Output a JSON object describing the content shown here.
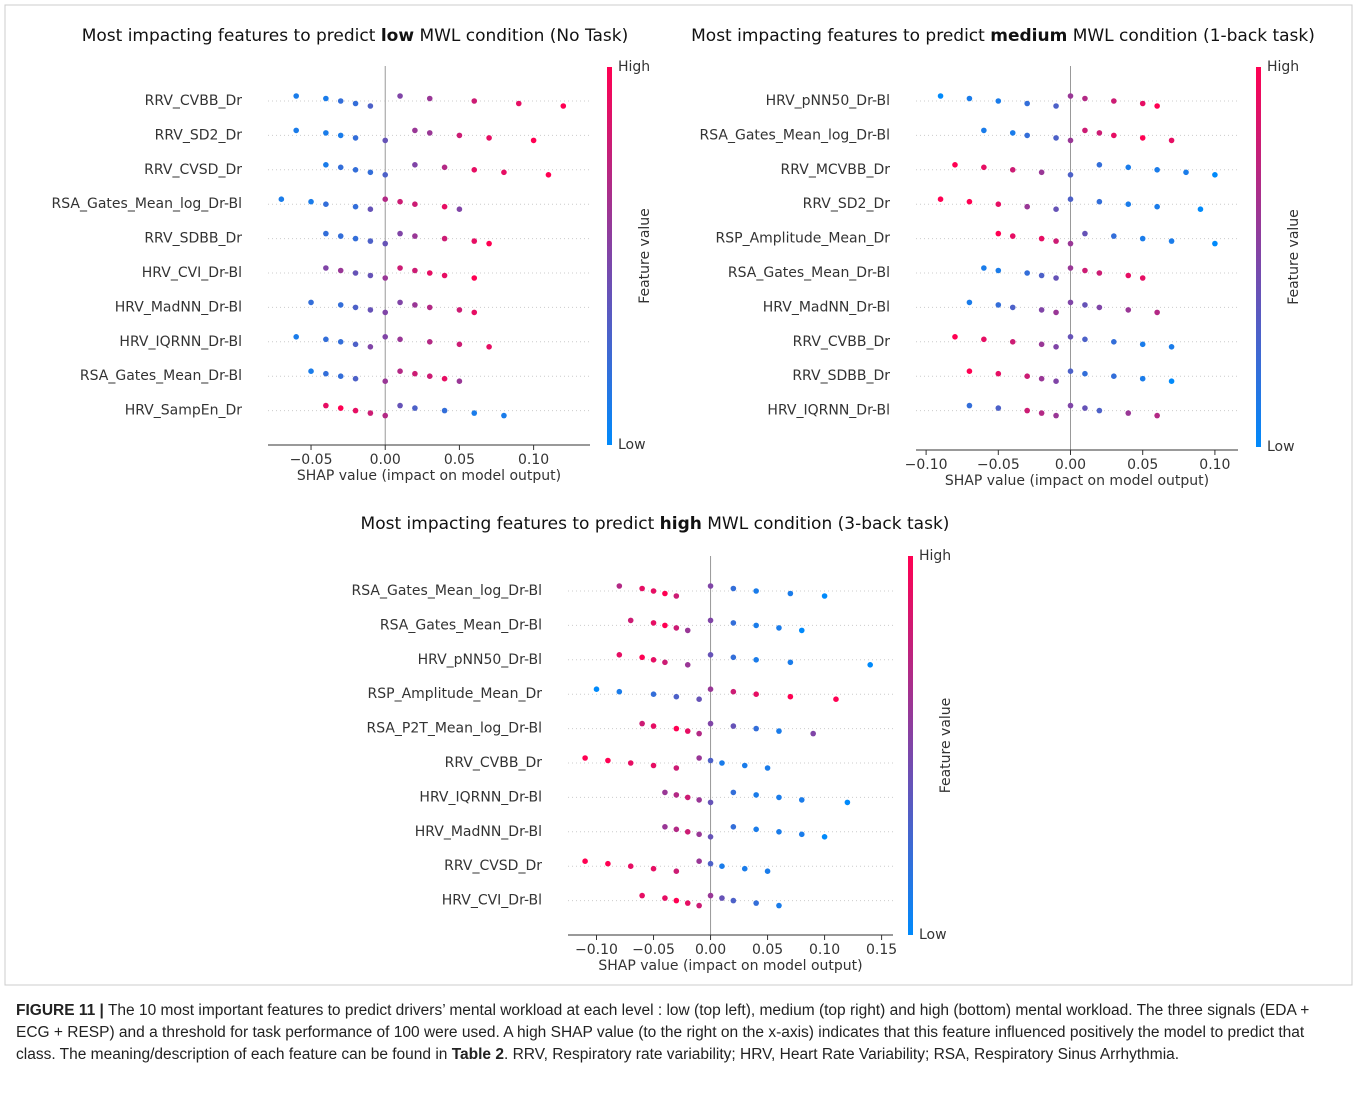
{
  "chart_data": [
    {
      "type": "beeswarm",
      "title": [
        "Most impacting features to predict",
        "low",
        "MWL condition (No Task)"
      ],
      "xlabel": "SHAP value (impact on model output)",
      "colorbar": {
        "high": "High",
        "low": "Low",
        "label": "Feature value"
      },
      "colormap": [
        "#008afb",
        "#ff0052"
      ],
      "xlim": [
        -0.079,
        0.138
      ],
      "xticks": [
        {
          "value": -0.05,
          "label": "−0.05"
        },
        {
          "value": 0,
          "label": "0.00"
        },
        {
          "value": 0.05,
          "label": "0.05"
        },
        {
          "value": 0.1,
          "label": "0.10"
        }
      ],
      "features": [
        {
          "name": "RRV_CVBB_Dr",
          "values": [
            -0.06,
            -0.04,
            -0.03,
            -0.02,
            -0.01,
            0.01,
            0.03,
            0.06,
            0.09,
            0.12
          ],
          "feature_values": [
            0.1,
            0.1,
            0.2,
            0.2,
            0.3,
            0.5,
            0.6,
            0.8,
            0.9,
            1
          ]
        },
        {
          "name": "RRV_SD2_Dr",
          "values": [
            -0.06,
            -0.04,
            -0.03,
            -0.02,
            0.0,
            0.02,
            0.03,
            0.05,
            0.07,
            0.1
          ],
          "feature_values": [
            0.1,
            0.1,
            0.1,
            0.2,
            0.4,
            0.6,
            0.6,
            0.8,
            0.9,
            1
          ]
        },
        {
          "name": "RRV_CVSD_Dr",
          "values": [
            -0.04,
            -0.03,
            -0.02,
            -0.01,
            0.0,
            0.02,
            0.04,
            0.06,
            0.08,
            0.11
          ],
          "feature_values": [
            0.1,
            0.2,
            0.2,
            0.2,
            0.3,
            0.5,
            0.7,
            0.9,
            0.9,
            1
          ]
        },
        {
          "name": "RSA_Gates_Mean_log_Dr-Bl",
          "values": [
            -0.07,
            -0.05,
            -0.04,
            -0.02,
            -0.01,
            0.0,
            0.01,
            0.02,
            0.04,
            0.05
          ],
          "feature_values": [
            0.1,
            0.1,
            0.2,
            0.2,
            0.4,
            0.7,
            0.8,
            0.8,
            0.9,
            0.5
          ]
        },
        {
          "name": "RRV_SDBB_Dr",
          "values": [
            -0.04,
            -0.03,
            -0.02,
            -0.01,
            0.0,
            0.01,
            0.02,
            0.04,
            0.06,
            0.07
          ],
          "feature_values": [
            0.2,
            0.2,
            0.2,
            0.3,
            0.4,
            0.5,
            0.6,
            0.8,
            0.9,
            1
          ]
        },
        {
          "name": "HRV_CVI_Dr-Bl",
          "values": [
            -0.04,
            -0.03,
            -0.02,
            -0.01,
            0.0,
            0.01,
            0.02,
            0.03,
            0.04,
            0.06
          ],
          "feature_values": [
            0.5,
            0.6,
            0.4,
            0.4,
            0.6,
            0.8,
            0.8,
            0.9,
            0.9,
            1
          ]
        },
        {
          "name": "HRV_MadNN_Dr-Bl",
          "values": [
            -0.05,
            -0.03,
            -0.02,
            -0.01,
            0.0,
            0.01,
            0.02,
            0.03,
            0.05,
            0.06
          ],
          "feature_values": [
            0.2,
            0.2,
            0.3,
            0.4,
            0.5,
            0.5,
            0.6,
            0.7,
            0.8,
            0.9
          ]
        },
        {
          "name": "HRV_IQRNN_Dr-Bl",
          "values": [
            -0.06,
            -0.04,
            -0.03,
            -0.02,
            -0.01,
            0.0,
            0.01,
            0.03,
            0.05,
            0.07
          ],
          "feature_values": [
            0.1,
            0.2,
            0.2,
            0.3,
            0.5,
            0.5,
            0.6,
            0.7,
            0.8,
            0.9
          ]
        },
        {
          "name": "RSA_Gates_Mean_Dr-Bl",
          "values": [
            -0.05,
            -0.04,
            -0.03,
            -0.02,
            0.0,
            0.01,
            0.02,
            0.03,
            0.04,
            0.05
          ],
          "feature_values": [
            0.1,
            0.2,
            0.2,
            0.3,
            0.6,
            0.7,
            0.8,
            0.8,
            0.9,
            0.6
          ]
        },
        {
          "name": "HRV_SampEn_Dr",
          "values": [
            -0.04,
            -0.03,
            -0.02,
            -0.01,
            0.0,
            0.01,
            0.02,
            0.04,
            0.06,
            0.08
          ],
          "feature_values": [
            0.9,
            1,
            0.9,
            0.8,
            0.7,
            0.4,
            0.3,
            0.2,
            0.1,
            0.1
          ]
        }
      ]
    },
    {
      "type": "beeswarm",
      "title": [
        "Most impacting features to predict",
        "medium",
        "MWL condition (1-back task)"
      ],
      "xlabel": "SHAP value (impact on model output)",
      "colorbar": {
        "high": "High",
        "low": "Low",
        "label": "Feature value"
      },
      "colormap": [
        "#008afb",
        "#ff0052"
      ],
      "xlim": [
        -0.107,
        0.116
      ],
      "xticks": [
        {
          "value": -0.1,
          "label": "−0.10"
        },
        {
          "value": -0.05,
          "label": "−0.05"
        },
        {
          "value": 0,
          "label": "0.00"
        },
        {
          "value": 0.05,
          "label": "0.05"
        },
        {
          "value": 0.1,
          "label": "0.10"
        }
      ],
      "features": [
        {
          "name": "HRV_pNN50_Dr-Bl",
          "values": [
            -0.09,
            -0.07,
            -0.05,
            -0.03,
            -0.01,
            0.0,
            0.01,
            0.03,
            0.05,
            0.06
          ],
          "feature_values": [
            0,
            0.1,
            0.1,
            0.2,
            0.3,
            0.6,
            0.7,
            0.8,
            0.9,
            1
          ]
        },
        {
          "name": "RSA_Gates_Mean_log_Dr-Bl",
          "values": [
            -0.06,
            -0.04,
            -0.03,
            -0.01,
            0.0,
            0.01,
            0.02,
            0.03,
            0.05,
            0.07
          ],
          "feature_values": [
            0.1,
            0.1,
            0.2,
            0.3,
            0.6,
            0.8,
            0.8,
            0.9,
            1,
            0.9
          ]
        },
        {
          "name": "RRV_MCVBB_Dr",
          "values": [
            -0.08,
            -0.06,
            -0.04,
            -0.02,
            0.0,
            0.02,
            0.04,
            0.06,
            0.08,
            0.1
          ],
          "feature_values": [
            1,
            0.9,
            0.8,
            0.6,
            0.3,
            0.2,
            0.1,
            0.1,
            0.1,
            0
          ]
        },
        {
          "name": "RRV_SD2_Dr",
          "values": [
            -0.09,
            -0.07,
            -0.05,
            -0.03,
            -0.01,
            0.0,
            0.02,
            0.04,
            0.06,
            0.09
          ],
          "feature_values": [
            1,
            1,
            0.9,
            0.6,
            0.4,
            0.3,
            0.2,
            0.1,
            0.1,
            0
          ]
        },
        {
          "name": "RSP_Amplitude_Mean_Dr",
          "values": [
            -0.05,
            -0.04,
            -0.02,
            -0.01,
            0.0,
            0.01,
            0.03,
            0.05,
            0.07,
            0.1
          ],
          "feature_values": [
            1,
            0.9,
            0.9,
            0.8,
            0.6,
            0.4,
            0.2,
            0.1,
            0.1,
            0
          ]
        },
        {
          "name": "RSA_Gates_Mean_Dr-Bl",
          "values": [
            -0.06,
            -0.05,
            -0.03,
            -0.02,
            -0.01,
            0.0,
            0.01,
            0.02,
            0.04,
            0.05
          ],
          "feature_values": [
            0.1,
            0.1,
            0.2,
            0.3,
            0.4,
            0.6,
            0.8,
            0.8,
            0.9,
            0.9
          ]
        },
        {
          "name": "HRV_MadNN_Dr-Bl",
          "values": [
            -0.07,
            -0.05,
            -0.04,
            -0.02,
            -0.01,
            0.0,
            0.01,
            0.02,
            0.04,
            0.06
          ],
          "feature_values": [
            0.1,
            0.2,
            0.3,
            0.5,
            0.6,
            0.5,
            0.4,
            0.5,
            0.6,
            0.7
          ]
        },
        {
          "name": "RRV_CVBB_Dr",
          "values": [
            -0.08,
            -0.06,
            -0.04,
            -0.02,
            -0.01,
            0.0,
            0.01,
            0.03,
            0.05,
            0.07
          ],
          "feature_values": [
            1,
            0.9,
            0.8,
            0.6,
            0.5,
            0.4,
            0.3,
            0.2,
            0.1,
            0.1
          ]
        },
        {
          "name": "RRV_SDBB_Dr",
          "values": [
            -0.07,
            -0.05,
            -0.03,
            -0.02,
            -0.01,
            0.0,
            0.01,
            0.03,
            0.05,
            0.07
          ],
          "feature_values": [
            1,
            0.9,
            0.8,
            0.6,
            0.5,
            0.3,
            0.2,
            0.2,
            0.1,
            0
          ]
        },
        {
          "name": "HRV_IQRNN_Dr-Bl",
          "values": [
            -0.07,
            -0.05,
            -0.03,
            -0.02,
            -0.01,
            0.0,
            0.01,
            0.02,
            0.04,
            0.06
          ],
          "feature_values": [
            0.2,
            0.3,
            0.8,
            0.7,
            0.6,
            0.5,
            0.4,
            0.3,
            0.6,
            0.7
          ]
        }
      ]
    },
    {
      "type": "beeswarm",
      "title": [
        "Most impacting features to predict",
        "high",
        "MWL condition (3-back task)"
      ],
      "xlabel": "SHAP value (impact on model output)",
      "colorbar": {
        "high": "High",
        "low": "Low",
        "label": "Feature value"
      },
      "colormap": [
        "#008afb",
        "#ff0052"
      ],
      "xlim": [
        -0.125,
        0.16
      ],
      "xticks": [
        {
          "value": -0.1,
          "label": "−0.10"
        },
        {
          "value": -0.05,
          "label": "−0.05"
        },
        {
          "value": 0,
          "label": "0.00"
        },
        {
          "value": 0.05,
          "label": "0.05"
        },
        {
          "value": 0.1,
          "label": "0.10"
        },
        {
          "value": 0.15,
          "label": "0.15"
        }
      ],
      "features": [
        {
          "name": "RSA_Gates_Mean_log_Dr-Bl",
          "values": [
            -0.08,
            -0.06,
            -0.05,
            -0.04,
            -0.03,
            0.0,
            0.02,
            0.04,
            0.07,
            0.1
          ],
          "feature_values": [
            0.7,
            0.9,
            0.9,
            1,
            0.8,
            0.5,
            0.2,
            0.1,
            0.1,
            0
          ]
        },
        {
          "name": "RSA_Gates_Mean_Dr-Bl",
          "values": [
            -0.07,
            -0.05,
            -0.04,
            -0.03,
            -0.02,
            0.0,
            0.02,
            0.04,
            0.06,
            0.08
          ],
          "feature_values": [
            0.8,
            0.9,
            1,
            0.8,
            0.6,
            0.5,
            0.2,
            0.1,
            0.1,
            0
          ]
        },
        {
          "name": "HRV_pNN50_Dr-Bl",
          "values": [
            -0.08,
            -0.06,
            -0.05,
            -0.04,
            -0.02,
            0.0,
            0.02,
            0.04,
            0.07,
            0.14
          ],
          "feature_values": [
            0.9,
            1,
            0.9,
            0.8,
            0.6,
            0.4,
            0.2,
            0.1,
            0.1,
            0
          ]
        },
        {
          "name": "RSP_Amplitude_Mean_Dr",
          "values": [
            -0.1,
            -0.08,
            -0.05,
            -0.03,
            -0.01,
            0.0,
            0.02,
            0.04,
            0.07,
            0.11
          ],
          "feature_values": [
            0,
            0.1,
            0.2,
            0.3,
            0.4,
            0.6,
            0.8,
            0.9,
            1,
            1
          ]
        },
        {
          "name": "RSA_P2T_Mean_log_Dr-Bl",
          "values": [
            -0.06,
            -0.05,
            -0.03,
            -0.02,
            -0.01,
            0.0,
            0.02,
            0.04,
            0.06,
            0.09
          ],
          "feature_values": [
            0.8,
            0.9,
            1,
            0.9,
            0.7,
            0.5,
            0.4,
            0.2,
            0.1,
            0.5
          ]
        },
        {
          "name": "RRV_CVBB_Dr",
          "values": [
            -0.11,
            -0.09,
            -0.07,
            -0.05,
            -0.03,
            -0.01,
            0.0,
            0.01,
            0.03,
            0.05
          ],
          "feature_values": [
            1,
            1,
            0.9,
            0.9,
            0.8,
            0.6,
            0.3,
            0.1,
            0.1,
            0.1
          ]
        },
        {
          "name": "HRV_IQRNN_Dr-Bl",
          "values": [
            -0.04,
            -0.03,
            -0.02,
            -0.01,
            0.0,
            0.02,
            0.04,
            0.06,
            0.08,
            0.12
          ],
          "feature_values": [
            0.6,
            0.7,
            0.8,
            0.6,
            0.4,
            0.2,
            0.1,
            0.1,
            0.1,
            0
          ]
        },
        {
          "name": "HRV_MadNN_Dr-Bl",
          "values": [
            -0.04,
            -0.03,
            -0.02,
            -0.01,
            0.0,
            0.02,
            0.04,
            0.06,
            0.08,
            0.1
          ],
          "feature_values": [
            0.6,
            0.7,
            0.8,
            0.6,
            0.4,
            0.2,
            0.1,
            0.1,
            0.1,
            0
          ]
        },
        {
          "name": "RRV_CVSD_Dr",
          "values": [
            -0.11,
            -0.09,
            -0.07,
            -0.05,
            -0.03,
            -0.01,
            0.0,
            0.01,
            0.03,
            0.05
          ],
          "feature_values": [
            1,
            1,
            0.9,
            0.9,
            0.8,
            0.6,
            0.3,
            0.1,
            0.1,
            0.1
          ]
        },
        {
          "name": "HRV_CVI_Dr-Bl",
          "values": [
            -0.06,
            -0.04,
            -0.03,
            -0.02,
            -0.01,
            0.0,
            0.01,
            0.02,
            0.04,
            0.06
          ],
          "feature_values": [
            0.9,
            0.9,
            1,
            0.9,
            0.8,
            0.6,
            0.4,
            0.3,
            0.2,
            0.1
          ]
        }
      ]
    }
  ],
  "caption": {
    "label": "FIGURE 11 |",
    "text": "The 10 most important features to predict drivers’ mental workload at each level : low (top left), medium (top right) and high (bottom) mental workload. The three signals (EDA + ECG + RESP) and a threshold for task performance of 100 were used. A high SHAP value (to the right on the x-axis) indicates that this feature influenced positively the model to predict that class. The meaning/description of each feature can be found in",
    "ref": "Table 2",
    "text_after": ". RRV, Respiratory rate variability; HRV, Heart Rate Variability; RSA, Respiratory Sinus Arrhythmia."
  }
}
